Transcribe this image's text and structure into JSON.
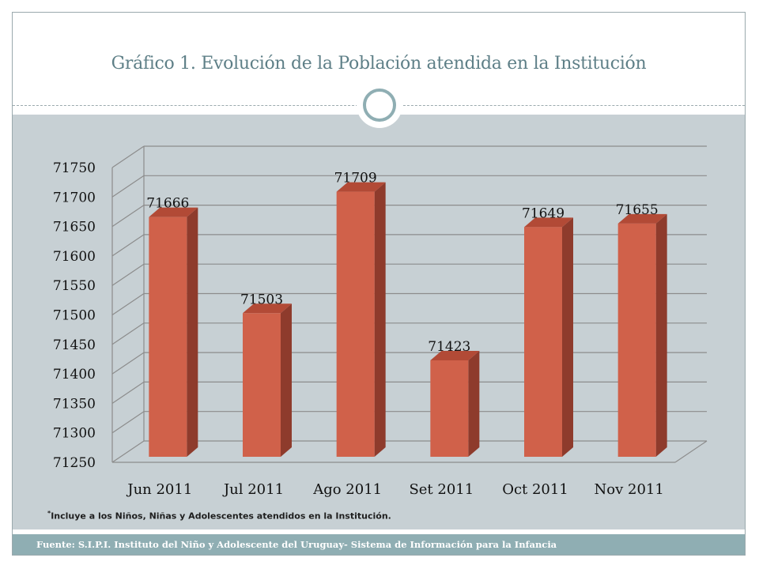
{
  "slide": {
    "title": "Gráfico 1. Evolución de la Población atendida en la Institución",
    "note_marker": "*",
    "note": "Incluye a los Niños, Niñas y Adolescentes atendidos en la Institución.",
    "footer": "Fuente: S.I.P.I. Instituto del Niño y Adolescente del Uruguay- Sistema de Información para la Infancia",
    "colors": {
      "accent": "#8faeb3",
      "title": "#5e7f87",
      "background": "#c7d0d4",
      "bar_front": "#d0614a",
      "bar_side": "#8e3b2c",
      "bar_top": "#b24a36"
    }
  },
  "chart_data": {
    "type": "bar",
    "style": "3d-column",
    "title": "",
    "xlabel": "",
    "ylabel": "",
    "categories": [
      "Jun 2011",
      "Jul 2011",
      "Ago 2011",
      "Set 2011",
      "Oct 2011",
      "Nov 2011"
    ],
    "values": [
      71666,
      71503,
      71709,
      71423,
      71649,
      71655
    ],
    "data_labels": [
      "71666",
      "71503",
      "71709",
      "71423",
      "71649",
      "71655"
    ],
    "ylim": [
      71250,
      71750
    ],
    "yticks": [
      71250,
      71300,
      71350,
      71400,
      71450,
      71500,
      71550,
      71600,
      71650,
      71700,
      71750
    ],
    "ytick_labels": [
      "71250",
      "71300",
      "71350",
      "71400",
      "71450",
      "71500",
      "71550",
      "71600",
      "71650",
      "71700",
      "71750"
    ],
    "grid": true,
    "legend": "none"
  }
}
